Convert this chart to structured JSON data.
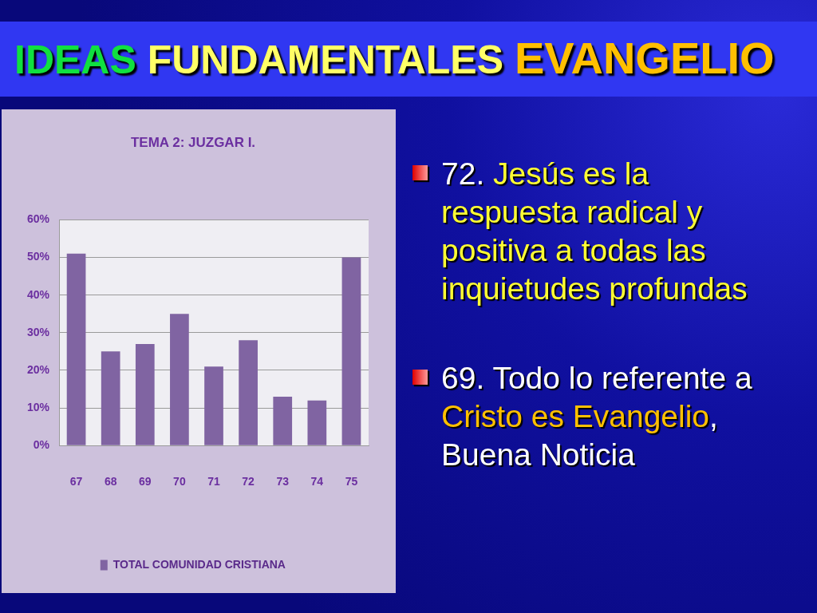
{
  "chart_data": {
    "type": "bar",
    "title": "IDEAS FUNDAMENTALES EVANGELIO",
    "subtitle": "TEMA 2: JUZGAR I.",
    "categories": [
      "67",
      "68",
      "69",
      "70",
      "71",
      "72",
      "73",
      "74",
      "75"
    ],
    "series": [
      {
        "name": "TOTAL COMUNIDAD CRISTIANA",
        "color": "#8064a2",
        "values": [
          51,
          25,
          27,
          35,
          21,
          28,
          13,
          12,
          50
        ]
      }
    ],
    "ylim": [
      0,
      60
    ],
    "yticks": [
      {
        "value": 0,
        "label": "0%"
      },
      {
        "value": 10,
        "label": "10%"
      },
      {
        "value": 20,
        "label": "20%"
      },
      {
        "value": 30,
        "label": "30%"
      },
      {
        "value": 40,
        "label": "40%"
      },
      {
        "value": 50,
        "label": "50%"
      },
      {
        "value": 60,
        "label": "60%"
      }
    ],
    "grid": "y",
    "legend": "bottom",
    "annotations": [
      "72. Jesús es la respuesta radical y positiva a todas las inquietudes profundas",
      "69. Todo lo referente a Cristo es Evangelio, Buena Noticia"
    ]
  }
}
